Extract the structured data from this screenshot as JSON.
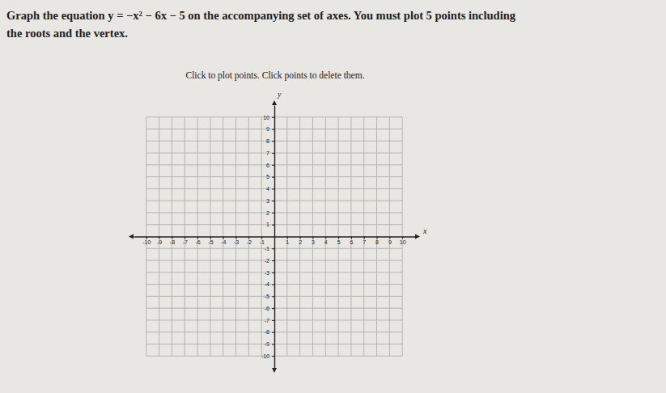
{
  "question": [
    "Graph the equation y = −x² − 6x − 5 on the accompanying set of axes. You must plot 5 points including",
    "the roots and the vertex."
  ],
  "instruction": "Click to plot points. Click points to delete them.",
  "chart_data": {
    "type": "scatter",
    "x_label": "x",
    "y_label": "y",
    "xlim": [
      -11,
      11
    ],
    "ylim": [
      -11,
      11
    ],
    "xticks": [
      -10,
      -9,
      -8,
      -7,
      -6,
      -5,
      -4,
      -3,
      -2,
      -1,
      1,
      2,
      3,
      4,
      5,
      6,
      7,
      8,
      9,
      10
    ],
    "yticks": [
      -10,
      -9,
      -8,
      -7,
      -6,
      -5,
      -4,
      -3,
      -2,
      -1,
      1,
      2,
      3,
      4,
      5,
      6,
      7,
      8,
      9,
      10
    ],
    "grid": true
  }
}
